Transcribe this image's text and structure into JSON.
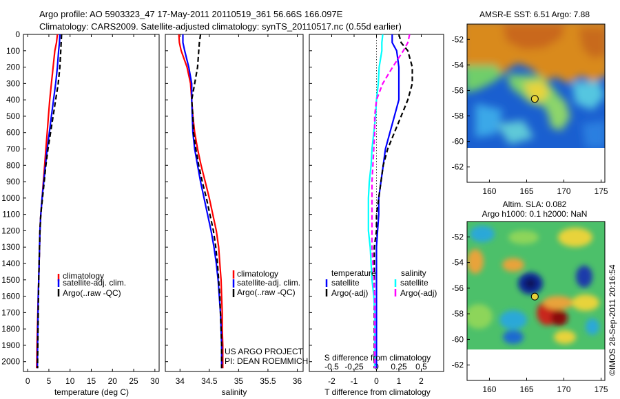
{
  "header": {
    "line1": "Argo profile: AO 5903323_47 17-May-2011 20110519_361 56.66S 166.097E",
    "line2": "Climatology: CARS2009. Satellite-adjusted climatology: synTS_20110517.nc (0.55d earlier)"
  },
  "side_credit": "©IMOS 28-Sep-2011 20:16:54",
  "colors": {
    "climatology": "#ff0000",
    "satellite": "#0000ff",
    "argo": "#000000",
    "temperature_diff": "#00ffff",
    "salinity_diff": "#ff00ff",
    "sst_warm": "#d98a1a",
    "sst_cold": "#1a5fd0",
    "land_mask": "#ffffff"
  },
  "chart_data": [
    {
      "id": "temperature",
      "type": "line",
      "xlabel": "temperature (deg C)",
      "ylabel": "",
      "xlim": [
        -1,
        31
      ],
      "ylim": [
        2060,
        0
      ],
      "xticks": [
        0,
        5,
        10,
        15,
        20,
        25,
        30
      ],
      "yticks": [
        0,
        100,
        200,
        300,
        400,
        500,
        600,
        700,
        800,
        900,
        1000,
        1100,
        1200,
        1300,
        1400,
        1500,
        1600,
        1700,
        1800,
        1900,
        2000
      ],
      "legend": [
        "climatology",
        "satellite-adj. clim.",
        "Argo(..raw -QC)"
      ],
      "legend_position": "lower-right",
      "series": [
        {
          "name": "climatology",
          "color_key": "climatology",
          "dash": "solid",
          "points": [
            [
              7.0,
              0
            ],
            [
              6.8,
              50
            ],
            [
              6.4,
              100
            ],
            [
              6.0,
              200
            ],
            [
              5.6,
              300
            ],
            [
              5.2,
              400
            ],
            [
              4.9,
              500
            ],
            [
              4.6,
              600
            ],
            [
              4.3,
              700
            ],
            [
              4.0,
              800
            ],
            [
              3.7,
              900
            ],
            [
              3.4,
              1000
            ],
            [
              3.1,
              1100
            ],
            [
              2.9,
              1200
            ],
            [
              2.8,
              1300
            ],
            [
              2.7,
              1400
            ],
            [
              2.6,
              1500
            ],
            [
              2.5,
              1600
            ],
            [
              2.4,
              1700
            ],
            [
              2.3,
              1800
            ],
            [
              2.2,
              1900
            ],
            [
              2.15,
              2000
            ],
            [
              2.1,
              2040
            ]
          ]
        },
        {
          "name": "satellite-adj. clim.",
          "color_key": "satellite",
          "dash": "solid",
          "points": [
            [
              7.6,
              0
            ],
            [
              7.5,
              50
            ],
            [
              7.3,
              100
            ],
            [
              7.0,
              200
            ],
            [
              6.6,
              300
            ],
            [
              6.1,
              400
            ],
            [
              5.6,
              500
            ],
            [
              5.1,
              600
            ],
            [
              4.6,
              700
            ],
            [
              4.2,
              800
            ],
            [
              3.8,
              900
            ],
            [
              3.4,
              1000
            ],
            [
              3.1,
              1100
            ],
            [
              2.9,
              1200
            ],
            [
              2.8,
              1300
            ],
            [
              2.7,
              1400
            ],
            [
              2.6,
              1500
            ],
            [
              2.5,
              1600
            ],
            [
              2.45,
              1700
            ],
            [
              2.4,
              1800
            ],
            [
              2.35,
              1900
            ],
            [
              2.3,
              2000
            ],
            [
              2.3,
              2040
            ]
          ]
        },
        {
          "name": "Argo(..raw -QC)",
          "color_key": "argo",
          "dash": "dash",
          "points": [
            [
              8.0,
              0
            ],
            [
              7.9,
              50
            ],
            [
              7.8,
              100
            ],
            [
              7.6,
              200
            ],
            [
              7.2,
              300
            ],
            [
              6.6,
              400
            ],
            [
              6.0,
              500
            ],
            [
              5.4,
              600
            ],
            [
              4.8,
              700
            ],
            [
              4.3,
              800
            ],
            [
              3.9,
              900
            ],
            [
              3.5,
              1000
            ],
            [
              3.1,
              1100
            ],
            [
              2.9,
              1200
            ],
            [
              2.8,
              1300
            ],
            [
              2.7,
              1400
            ],
            [
              2.6,
              1500
            ],
            [
              2.55,
              1600
            ],
            [
              2.5,
              1700
            ],
            [
              2.45,
              1800
            ],
            [
              2.4,
              1900
            ],
            [
              2.35,
              2000
            ],
            [
              2.35,
              2040
            ]
          ]
        }
      ]
    },
    {
      "id": "salinity",
      "type": "line",
      "xlabel": "salinity",
      "ylabel": "",
      "xlim": [
        33.75,
        36.1
      ],
      "ylim": [
        2060,
        0
      ],
      "xticks": [
        34,
        34.5,
        35,
        35.5,
        36
      ],
      "legend": [
        "climatology",
        "satellite-adj. clim.",
        "Argo(..raw -QC)"
      ],
      "legend_position": "lower-right",
      "annotation": [
        "US ARGO PROJECT",
        "PI: DEAN ROEMMICH"
      ],
      "series": [
        {
          "name": "climatology",
          "color_key": "climatology",
          "dash": "solid",
          "points": [
            [
              33.98,
              0
            ],
            [
              33.99,
              50
            ],
            [
              34.02,
              100
            ],
            [
              34.12,
              200
            ],
            [
              34.18,
              300
            ],
            [
              34.2,
              400
            ],
            [
              34.22,
              500
            ],
            [
              34.25,
              600
            ],
            [
              34.3,
              700
            ],
            [
              34.36,
              800
            ],
            [
              34.43,
              900
            ],
            [
              34.5,
              1000
            ],
            [
              34.56,
              1100
            ],
            [
              34.62,
              1200
            ],
            [
              34.66,
              1300
            ],
            [
              34.68,
              1400
            ],
            [
              34.7,
              1500
            ],
            [
              34.71,
              1600
            ],
            [
              34.72,
              1700
            ],
            [
              34.72,
              1800
            ],
            [
              34.73,
              1900
            ],
            [
              34.73,
              2040
            ]
          ]
        },
        {
          "name": "satellite-adj. clim.",
          "color_key": "satellite",
          "dash": "solid",
          "points": [
            [
              34.05,
              0
            ],
            [
              34.05,
              50
            ],
            [
              34.08,
              100
            ],
            [
              34.15,
              200
            ],
            [
              34.2,
              300
            ],
            [
              34.2,
              400
            ],
            [
              34.21,
              500
            ],
            [
              34.22,
              600
            ],
            [
              34.25,
              700
            ],
            [
              34.3,
              800
            ],
            [
              34.35,
              900
            ],
            [
              34.41,
              1000
            ],
            [
              34.47,
              1100
            ],
            [
              34.53,
              1200
            ],
            [
              34.58,
              1300
            ],
            [
              34.62,
              1400
            ],
            [
              34.65,
              1500
            ],
            [
              34.67,
              1600
            ],
            [
              34.69,
              1700
            ],
            [
              34.7,
              1800
            ],
            [
              34.71,
              1900
            ],
            [
              34.71,
              2040
            ]
          ]
        },
        {
          "name": "Argo(..raw -QC)",
          "color_key": "argo",
          "dash": "dash",
          "points": [
            [
              34.35,
              0
            ],
            [
              34.33,
              50
            ],
            [
              34.32,
              100
            ],
            [
              34.3,
              200
            ],
            [
              34.25,
              300
            ],
            [
              34.2,
              400
            ],
            [
              34.22,
              500
            ],
            [
              34.23,
              600
            ],
            [
              34.27,
              700
            ],
            [
              34.32,
              800
            ],
            [
              34.38,
              900
            ],
            [
              34.45,
              1000
            ],
            [
              34.51,
              1100
            ],
            [
              34.57,
              1200
            ],
            [
              34.61,
              1300
            ],
            [
              34.64,
              1400
            ],
            [
              34.66,
              1500
            ],
            [
              34.68,
              1600
            ],
            [
              34.69,
              1700
            ],
            [
              34.7,
              1800
            ],
            [
              34.71,
              1900
            ],
            [
              34.71,
              2040
            ]
          ]
        }
      ]
    },
    {
      "id": "differences",
      "type": "line",
      "xlabel": "T difference from climatology",
      "x2label": "S difference from climatology",
      "xlim": [
        -3.0,
        3.0
      ],
      "ylim": [
        2060,
        0
      ],
      "xticks": [
        -2,
        -1,
        0,
        1,
        2
      ],
      "x2ticks": [
        -0.5,
        -0.25,
        0,
        0.25,
        0.5
      ],
      "legend_temperature": {
        "title": "temperature",
        "items": [
          "satellite",
          "Argo(-adj)"
        ]
      },
      "legend_salinity": {
        "title": "salinity",
        "items": [
          "satellite",
          "Argo(-adj)"
        ]
      },
      "series": [
        {
          "name": "satellite",
          "group": "temperature",
          "color_key": "satellite",
          "dash": "solid",
          "points": [
            [
              0.7,
              0
            ],
            [
              0.7,
              50
            ],
            [
              0.9,
              100
            ],
            [
              1.0,
              200
            ],
            [
              1.0,
              300
            ],
            [
              1.0,
              400
            ],
            [
              0.8,
              500
            ],
            [
              0.6,
              600
            ],
            [
              0.4,
              700
            ],
            [
              0.3,
              800
            ],
            [
              0.2,
              900
            ],
            [
              0.1,
              1000
            ],
            [
              0.1,
              1100
            ],
            [
              0.05,
              1200
            ],
            [
              0.0,
              1300
            ],
            [
              0.0,
              1500
            ],
            [
              0.0,
              1700
            ],
            [
              0.0,
              1900
            ],
            [
              0.0,
              2040
            ]
          ]
        },
        {
          "name": "Argo(-adj)",
          "group": "temperature",
          "color_key": "argo",
          "dash": "dash",
          "points": [
            [
              1.0,
              0
            ],
            [
              1.1,
              50
            ],
            [
              1.4,
              100
            ],
            [
              1.6,
              200
            ],
            [
              1.6,
              300
            ],
            [
              1.4,
              400
            ],
            [
              1.1,
              500
            ],
            [
              0.8,
              600
            ],
            [
              0.5,
              700
            ],
            [
              0.3,
              800
            ],
            [
              0.2,
              900
            ],
            [
              0.1,
              1000
            ],
            [
              0.0,
              1100
            ],
            [
              0.0,
              1200
            ],
            [
              -0.1,
              1300
            ],
            [
              -0.1,
              1500
            ],
            [
              -0.1,
              1700
            ],
            [
              -0.1,
              1900
            ],
            [
              -0.1,
              2040
            ]
          ]
        },
        {
          "name": "satellite",
          "group": "salinity",
          "color_key": "temperature_diff",
          "dash": "solid",
          "points": [
            [
              0.07,
              0
            ],
            [
              0.06,
              50
            ],
            [
              0.06,
              100
            ],
            [
              0.03,
              200
            ],
            [
              0.02,
              300
            ],
            [
              0.0,
              400
            ],
            [
              -0.01,
              500
            ],
            [
              -0.03,
              600
            ],
            [
              -0.05,
              700
            ],
            [
              -0.06,
              800
            ],
            [
              -0.08,
              900
            ],
            [
              -0.09,
              1000
            ],
            [
              -0.09,
              1100
            ],
            [
              -0.09,
              1200
            ],
            [
              -0.07,
              1300
            ],
            [
              -0.06,
              1400
            ],
            [
              -0.05,
              1500
            ],
            [
              -0.03,
              1600
            ],
            [
              -0.02,
              1700
            ],
            [
              -0.02,
              1800
            ],
            [
              -0.02,
              1900
            ],
            [
              -0.02,
              2040
            ]
          ]
        },
        {
          "name": "Argo(-adj)",
          "group": "salinity",
          "color_key": "salinity_diff",
          "dash": "dash",
          "points": [
            [
              0.37,
              0
            ],
            [
              0.35,
              50
            ],
            [
              0.3,
              100
            ],
            [
              0.18,
              200
            ],
            [
              0.07,
              300
            ],
            [
              0.0,
              400
            ],
            [
              -0.02,
              500
            ],
            [
              -0.02,
              600
            ],
            [
              -0.03,
              700
            ],
            [
              -0.04,
              800
            ],
            [
              -0.05,
              900
            ],
            [
              -0.05,
              1000
            ],
            [
              -0.05,
              1100
            ],
            [
              -0.05,
              1200
            ],
            [
              -0.05,
              1300
            ],
            [
              -0.04,
              1400
            ],
            [
              -0.03,
              1500
            ],
            [
              -0.02,
              1600
            ],
            [
              -0.02,
              1700
            ],
            [
              -0.02,
              1800
            ],
            [
              -0.02,
              1900
            ],
            [
              -0.02,
              2040
            ]
          ]
        }
      ]
    },
    {
      "id": "sst_map",
      "type": "heatmap",
      "title": "AMSR-E SST: 6.51  Argo: 7.88",
      "xlim": [
        157,
        175.5
      ],
      "ylim": [
        -63.2,
        -50.8
      ],
      "xticks": [
        160,
        165,
        170,
        175
      ],
      "yticks": [
        -52,
        -54,
        -56,
        -58,
        -60,
        -62
      ],
      "marker": {
        "lon": 166.097,
        "lat": -56.66
      },
      "masked_below_lat": -60
    },
    {
      "id": "sla_map",
      "type": "heatmap",
      "title_line1": "Altim. SLA: 0.082",
      "title_line2": "Argo h1000: 0.1 h2000: NaN",
      "xlim": [
        157,
        175.5
      ],
      "ylim": [
        -63.2,
        -50.8
      ],
      "xticks": [
        160,
        165,
        170,
        175
      ],
      "yticks": [
        -52,
        -54,
        -56,
        -58,
        -60,
        -62
      ],
      "marker": {
        "lon": 166.097,
        "lat": -56.66
      },
      "masked_below_lat": -60
    }
  ]
}
